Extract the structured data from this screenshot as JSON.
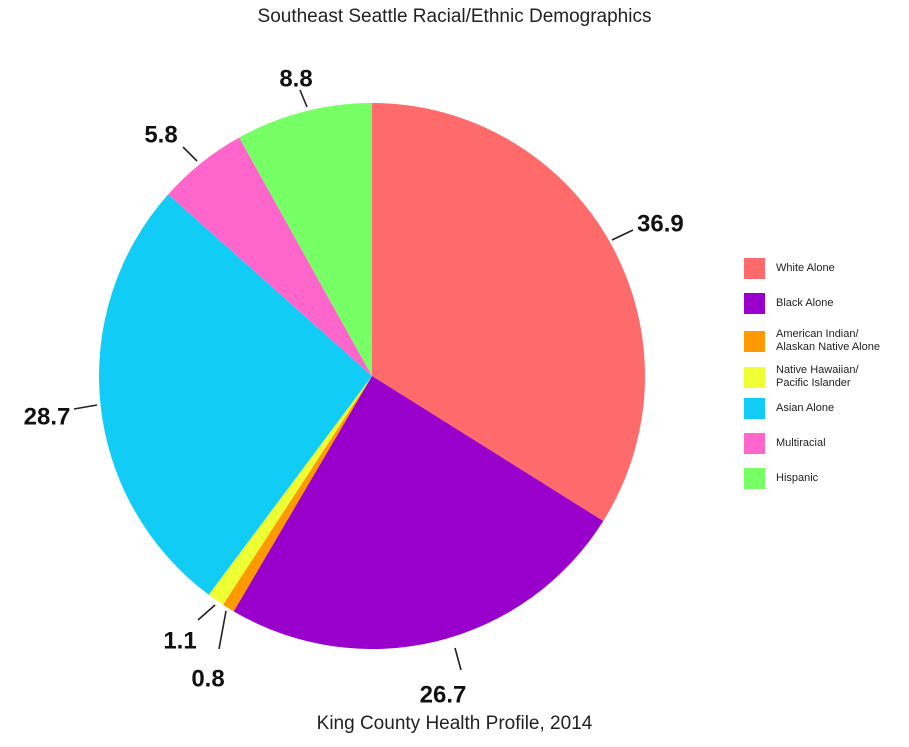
{
  "title": "Southeast Seattle Racial/Ethnic Demographics",
  "caption": "King County Health Profile, 2014",
  "chart_data": {
    "type": "pie",
    "title": "Southeast Seattle Racial/Ethnic Demographics",
    "start_angle_deg": 0,
    "direction": "clockwise",
    "slices": [
      {
        "label": "White Alone",
        "value": 36.9,
        "display": "36.9",
        "color": "#ff6b6b"
      },
      {
        "label": "Black Alone",
        "value": 26.7,
        "display": "26.7",
        "color": "#9900cc"
      },
      {
        "label": "American Indian/\nAlaskan Native Alone",
        "value": 0.8,
        "display": "0.8",
        "color": "#ff9900"
      },
      {
        "label": "Native Hawaiian/\nPacific Islander",
        "value": 1.1,
        "display": "1.1",
        "color": "#eeff33"
      },
      {
        "label": "Asian Alone",
        "value": 28.7,
        "display": "28.7",
        "color": "#11ccf5"
      },
      {
        "label": "Multiracial",
        "value": 5.8,
        "display": "5.8",
        "color": "#ff66cc"
      },
      {
        "label": "Hispanic",
        "value": 8.8,
        "display": "8.8",
        "color": "#77ff66"
      }
    ],
    "legend_position": "right"
  }
}
